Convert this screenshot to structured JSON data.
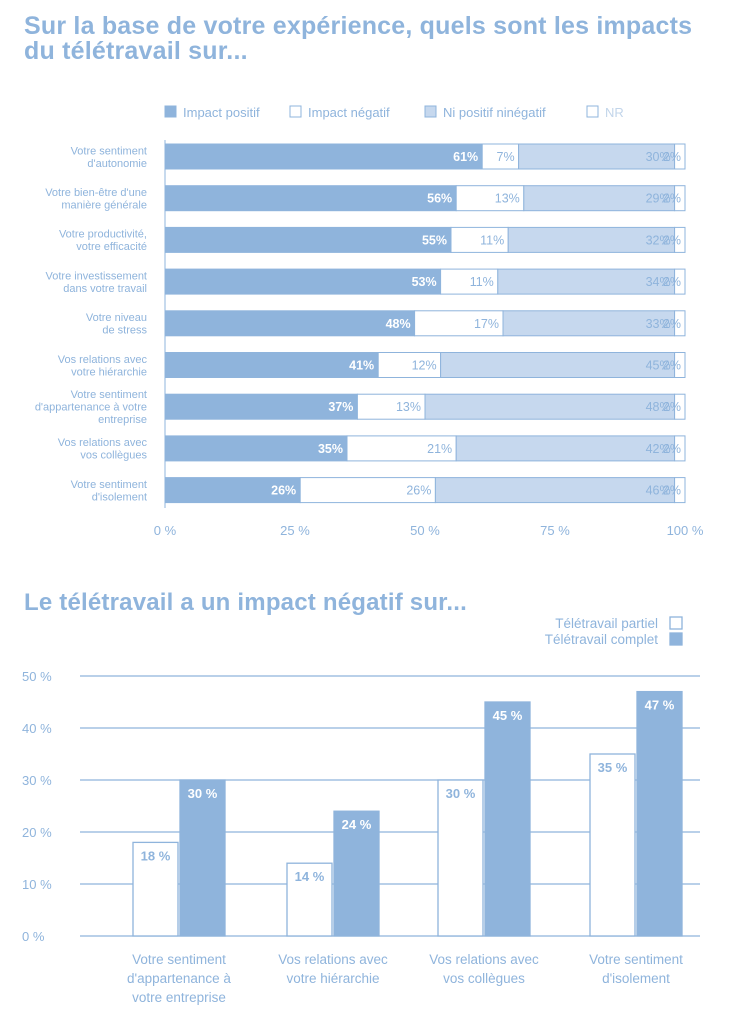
{
  "chart_data": [
    {
      "type": "bar",
      "orientation": "horizontal",
      "stacked": true,
      "title": "Sur la base de votre expérience, quels sont les impacts du télétravail sur...",
      "categories": [
        "Votre sentiment d'autonomie",
        "Votre bien-être d'une manière générale",
        "Votre productivité, votre efficacité",
        "Votre investissement dans votre travail",
        "Votre niveau de stress",
        "Vos relations avec votre hiérarchie",
        "Votre sentiment d'appartenance à votre entreprise",
        "Vos relations avec vos collègues",
        "Votre sentiment d'isolement"
      ],
      "series": [
        {
          "name": "Impact positif",
          "values": [
            61,
            56,
            55,
            53,
            48,
            41,
            37,
            35,
            26
          ]
        },
        {
          "name": "Impact négatif",
          "values": [
            7,
            13,
            11,
            11,
            17,
            12,
            13,
            21,
            26
          ]
        },
        {
          "name": "Ni positif ninégatif",
          "values": [
            30,
            29,
            32,
            34,
            33,
            45,
            48,
            42,
            46
          ]
        },
        {
          "name": "NR",
          "values": [
            2,
            2,
            2,
            2,
            2,
            2,
            2,
            2,
            2
          ]
        }
      ],
      "xticks": [
        "0 %",
        "25 %",
        "50 %",
        "75 %",
        "100 %"
      ],
      "xlim": [
        0,
        100
      ],
      "legend_position": "top",
      "colors": {
        "positif": "#8fb4dc",
        "negatif": "#ffffff",
        "neutre": "#c6d8ee",
        "nr": "#ffffff",
        "stroke": "#8fb4dc",
        "label": "#8fb4dc"
      }
    },
    {
      "type": "bar",
      "orientation": "vertical",
      "title": "Le télétravail a un impact négatif sur...",
      "categories": [
        "Votre sentiment d'appartenance à votre entreprise",
        "Vos relations avec votre hiérarchie",
        "Vos relations avec vos collègues",
        "Votre sentiment d'isolement"
      ],
      "series": [
        {
          "name": "Télétravail partiel",
          "values": [
            18,
            14,
            30,
            35
          ]
        },
        {
          "name": "Télétravail complet",
          "values": [
            30,
            24,
            45,
            47
          ]
        }
      ],
      "yticks": [
        "50 %",
        "40 %",
        "30 %",
        "20 %",
        "10 %",
        "0 %"
      ],
      "ylim": [
        0,
        50
      ],
      "legend_position": "top-right",
      "colors": {
        "partiel": "#ffffff",
        "complet": "#8fb4dc",
        "stroke": "#8fb4dc",
        "label": "#8fb4dc"
      }
    }
  ]
}
